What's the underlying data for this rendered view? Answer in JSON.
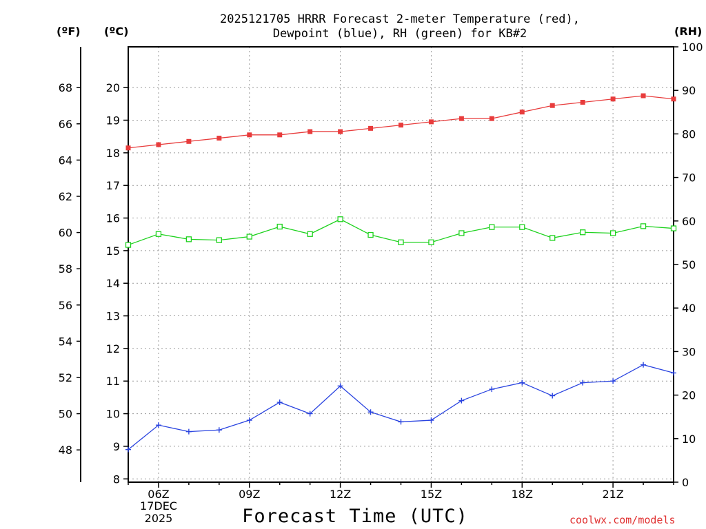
{
  "title_line1": "2025121705 HRRR Forecast 2-meter Temperature (red),",
  "title_line2": "Dewpoint (blue), RH (green) for KB#2",
  "units": {
    "fahrenheit": "(ºF)",
    "celsius": "(ºC)",
    "rh": "(RH)"
  },
  "x_axis_label": "Forecast Time (UTC)",
  "date_label_day": "17DEC",
  "date_label_year": "2025",
  "credit": "coolwx.com/models",
  "colors": {
    "temperature": "#e83c3c",
    "dewpoint": "#2a44e0",
    "rh": "#1ed21e",
    "grid": "#9a9a9a"
  },
  "chart_data": {
    "type": "line",
    "title": "2025121705 HRRR Forecast 2-meter Temperature (red), Dewpoint (blue), RH (green) for KB#2",
    "xlabel": "Forecast Time (UTC)",
    "x": [
      5,
      6,
      7,
      8,
      9,
      10,
      11,
      12,
      13,
      14,
      15,
      16,
      17,
      18,
      19,
      20,
      21,
      22,
      23
    ],
    "x_ticks": [
      6,
      9,
      12,
      15,
      18,
      21
    ],
    "x_tick_labels": [
      "06Z",
      "09Z",
      "12Z",
      "15Z",
      "18Z",
      "21Z"
    ],
    "xlim": [
      5,
      23
    ],
    "ylim_celsius": [
      7.9,
      21.25
    ],
    "celsius_ticks": [
      8,
      9,
      10,
      11,
      12,
      13,
      14,
      15,
      16,
      17,
      18,
      19,
      20
    ],
    "fahrenheit_ticks": [
      48,
      50,
      52,
      54,
      56,
      58,
      60,
      62,
      64,
      66,
      68
    ],
    "ylim_rh": [
      0,
      100
    ],
    "rh_ticks": [
      0,
      10,
      20,
      30,
      40,
      50,
      60,
      70,
      80,
      90,
      100
    ],
    "grid": true,
    "series": [
      {
        "name": "Temperature",
        "unit": "celsius",
        "marker": "square-filled",
        "color_key": "temperature",
        "values": [
          18.15,
          18.25,
          18.35,
          18.45,
          18.55,
          18.55,
          18.65,
          18.65,
          18.75,
          18.85,
          18.95,
          19.05,
          19.05,
          19.25,
          19.45,
          19.55,
          19.65,
          19.75,
          19.65
        ]
      },
      {
        "name": "Dewpoint",
        "unit": "celsius",
        "marker": "plus",
        "color_key": "dewpoint",
        "values": [
          8.9,
          9.65,
          9.45,
          9.5,
          9.8,
          10.35,
          10.0,
          10.85,
          10.05,
          9.75,
          9.8,
          10.4,
          10.75,
          10.95,
          10.55,
          10.95,
          11.0,
          11.5,
          11.25
        ]
      },
      {
        "name": "RH",
        "unit": "percent",
        "marker": "square-open",
        "color_key": "rh",
        "values": [
          54.5,
          57.0,
          55.8,
          55.6,
          56.4,
          58.7,
          57.0,
          60.4,
          56.8,
          55.1,
          55.1,
          57.2,
          58.6,
          58.6,
          56.1,
          57.4,
          57.2,
          58.8,
          58.3
        ]
      }
    ]
  }
}
